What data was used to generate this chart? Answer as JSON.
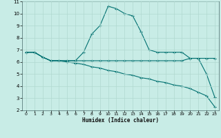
{
  "xlabel": "Humidex (Indice chaleur)",
  "xlim_min": -0.5,
  "xlim_max": 23.5,
  "ylim_min": 2,
  "ylim_max": 11,
  "xticks": [
    0,
    1,
    2,
    3,
    4,
    5,
    6,
    7,
    8,
    9,
    10,
    11,
    12,
    13,
    14,
    15,
    16,
    17,
    18,
    19,
    20,
    21,
    22,
    23
  ],
  "yticks": [
    2,
    3,
    4,
    5,
    6,
    7,
    8,
    9,
    10,
    11
  ],
  "background_color": "#c8ece6",
  "grid_color": "#b0d8d0",
  "line_color": "#007070",
  "series1_x": [
    0,
    1,
    2,
    3,
    4,
    5,
    6,
    7,
    8,
    9,
    10,
    11,
    12,
    13,
    14,
    15,
    16,
    17,
    18,
    19,
    20,
    21,
    22,
    23
  ],
  "series1_y": [
    6.8,
    6.8,
    6.4,
    6.1,
    6.1,
    6.1,
    6.1,
    6.8,
    8.3,
    9.0,
    10.6,
    10.4,
    10.0,
    9.8,
    8.5,
    7.0,
    6.8,
    6.8,
    6.8,
    6.8,
    6.3,
    6.3,
    5.0,
    3.1
  ],
  "series2_x": [
    0,
    1,
    2,
    3,
    4,
    5,
    6,
    7,
    8,
    9,
    10,
    11,
    12,
    13,
    14,
    15,
    16,
    17,
    18,
    19,
    20,
    21,
    22,
    23
  ],
  "series2_y": [
    6.8,
    6.8,
    6.4,
    6.1,
    6.1,
    6.1,
    6.1,
    6.1,
    6.1,
    6.1,
    6.1,
    6.1,
    6.1,
    6.1,
    6.1,
    6.1,
    6.1,
    6.1,
    6.1,
    6.1,
    6.3,
    6.3,
    6.3,
    6.3
  ],
  "series3_x": [
    0,
    1,
    2,
    3,
    4,
    5,
    6,
    7,
    8,
    9,
    10,
    11,
    12,
    13,
    14,
    15,
    16,
    17,
    18,
    19,
    20,
    21,
    22,
    23
  ],
  "series3_y": [
    6.8,
    6.8,
    6.4,
    6.1,
    6.1,
    6.0,
    5.9,
    5.8,
    5.6,
    5.5,
    5.3,
    5.2,
    5.0,
    4.9,
    4.7,
    4.6,
    4.4,
    4.3,
    4.1,
    4.0,
    3.8,
    3.5,
    3.2,
    2.3
  ]
}
